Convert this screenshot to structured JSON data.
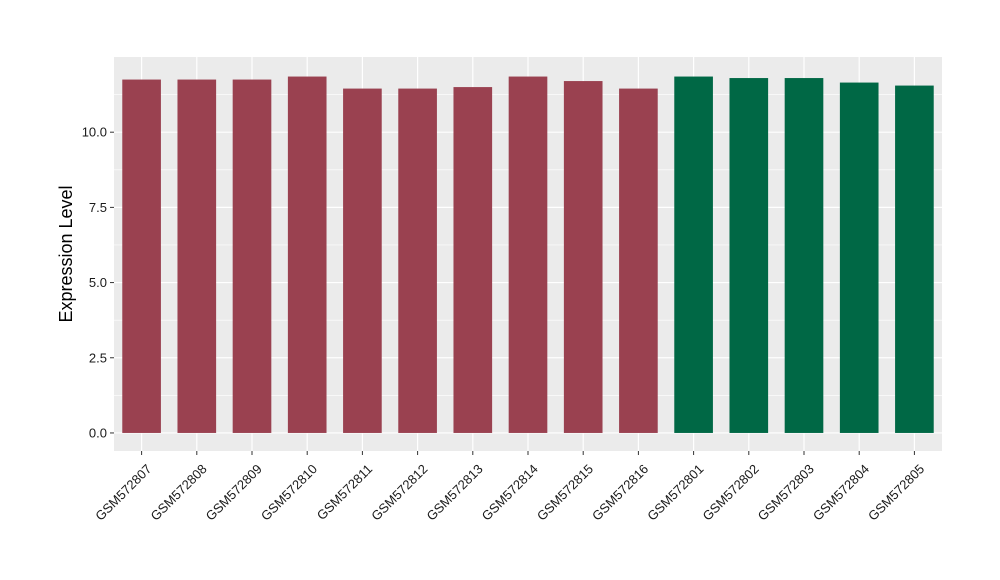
{
  "chart_data": {
    "type": "bar",
    "title": "",
    "xlabel": "",
    "ylabel": "Expression Level",
    "ylim": [
      -0.6,
      12.5
    ],
    "yticks": [
      0.0,
      2.5,
      5.0,
      7.5,
      10.0
    ],
    "ytick_labels": [
      "0.0",
      "2.5",
      "5.0",
      "7.5",
      "10.0"
    ],
    "grid": true,
    "legend": "none",
    "categories": [
      "GSM572807",
      "GSM572808",
      "GSM572809",
      "GSM572810",
      "GSM572811",
      "GSM572812",
      "GSM572813",
      "GSM572814",
      "GSM572815",
      "GSM572816",
      "GSM572801",
      "GSM572802",
      "GSM572803",
      "GSM572804",
      "GSM572805"
    ],
    "values": [
      11.75,
      11.75,
      11.75,
      11.85,
      11.45,
      11.45,
      11.5,
      11.85,
      11.7,
      11.45,
      11.85,
      11.8,
      11.8,
      11.65,
      11.55
    ],
    "bar_colors": [
      "#9a4150",
      "#9a4150",
      "#9a4150",
      "#9a4150",
      "#9a4150",
      "#9a4150",
      "#9a4150",
      "#9a4150",
      "#9a4150",
      "#9a4150",
      "#006845",
      "#006845",
      "#006845",
      "#006845",
      "#006845"
    ],
    "panel_background": "#ebebeb",
    "gridline_color": "#ffffff"
  }
}
